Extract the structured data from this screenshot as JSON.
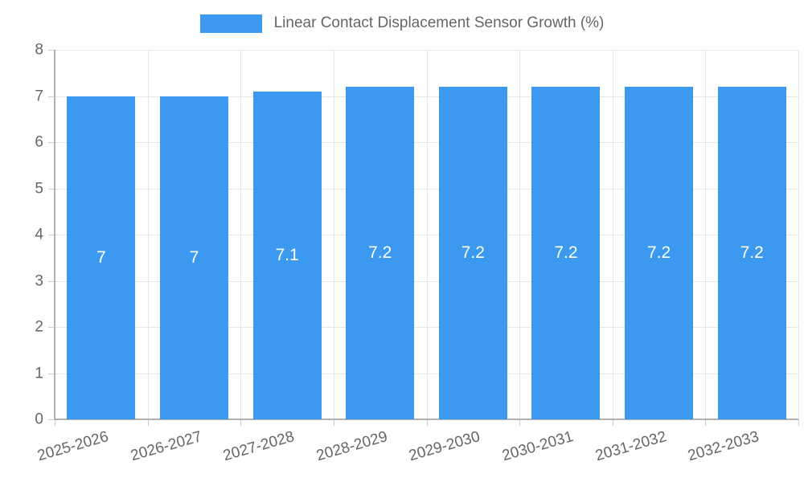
{
  "chart_data": {
    "type": "bar",
    "title": "Linear Contact Displacement Sensor Growth (%)",
    "categories": [
      "2025-2026",
      "2026-2027",
      "2027-2028",
      "2028-2029",
      "2029-2030",
      "2030-2031",
      "2031-2032",
      "2032-2033"
    ],
    "values": [
      7,
      7,
      7.1,
      7.2,
      7.2,
      7.2,
      7.2,
      7.2
    ],
    "bar_labels": [
      "7",
      "7",
      "7.1",
      "7.2",
      "7.2",
      "7.2",
      "7.2",
      "7.2"
    ],
    "xlabel": "",
    "ylabel": "",
    "ylim": [
      0,
      8
    ],
    "ytick_step": 1,
    "grid": true,
    "legend_position": "top",
    "x_label_rotation_deg": -16,
    "colors": {
      "bar": "#3b99ef",
      "bar_label_text": "#ffffff",
      "axis_line": "#b0b0b0",
      "gridline": "#e6e6e6",
      "tick": "#cccccc",
      "label_text": "#666666",
      "background": "#ffffff"
    }
  }
}
